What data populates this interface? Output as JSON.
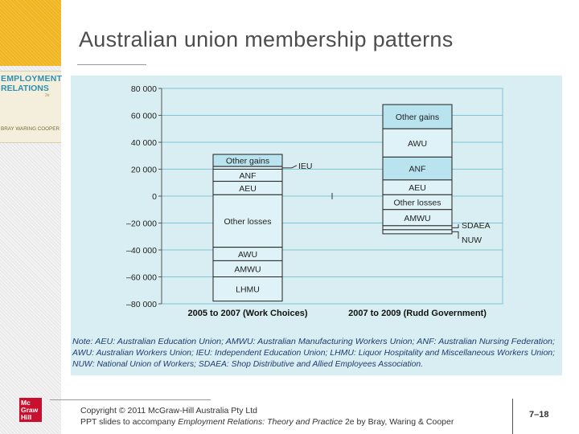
{
  "slide": {
    "title": "Australian union membership patterns",
    "page_number": "7–18"
  },
  "book": {
    "line1": "EMPLOYMENT",
    "line2": "RELATIONS",
    "edition": "2e",
    "authors": "BRAY WARING COOPER"
  },
  "publisher_logo": {
    "lines": [
      "Mc",
      "Graw",
      "Hill"
    ]
  },
  "footer": {
    "copyright": "Copyright © 2011 McGraw-Hill Australia Pty Ltd",
    "prefix": "PPT slides to accompany ",
    "book_title": "Employment Relations: Theory and Practice",
    "suffix": " 2e by Bray, Waring & Cooper"
  },
  "chart_data": {
    "type": "bar",
    "stacked": true,
    "ylim": [
      -80000,
      80000
    ],
    "yticks": [
      80000,
      60000,
      40000,
      20000,
      0,
      -20000,
      -40000,
      -60000,
      -80000
    ],
    "ytick_labels": [
      "80 000",
      "60 000",
      "40 000",
      "20 000",
      "0",
      "–20 000",
      "–40 000",
      "–60 000",
      "–80 000"
    ],
    "grid": true,
    "categories": [
      "2005 to 2007 (Work Choices)",
      "2007 to 2009 (Rudd Government)"
    ],
    "series": [
      {
        "category": "2005 to 2007 (Work Choices)",
        "segments": [
          {
            "label": "Other gains",
            "from": 22000,
            "to": 31000,
            "highlight": true
          },
          {
            "label": "",
            "from": 20000,
            "to": 22000
          },
          {
            "label": "ANF",
            "from": 11000,
            "to": 20000
          },
          {
            "label": "AEU",
            "from": 1000,
            "to": 11000
          },
          {
            "label": "Other losses",
            "from": -38000,
            "to": 1000
          },
          {
            "label": "AWU",
            "from": -48000,
            "to": -38000
          },
          {
            "label": "AMWU",
            "from": -60000,
            "to": -48000
          },
          {
            "label": "LHMU",
            "from": -78000,
            "to": -60000
          }
        ]
      },
      {
        "category": "2007 to 2009 (Rudd Government)",
        "segments": [
          {
            "label": "Other gains",
            "from": 50000,
            "to": 68000,
            "highlight": true
          },
          {
            "label": "AWU",
            "from": 29000,
            "to": 50000
          },
          {
            "label": "ANF",
            "from": 12000,
            "to": 29000,
            "highlight": true
          },
          {
            "label": "AEU",
            "from": 1000,
            "to": 12000
          },
          {
            "label": "Other losses",
            "from": -10000,
            "to": 1000
          },
          {
            "label": "AMWU",
            "from": -22000,
            "to": -10000
          },
          {
            "label": "",
            "from": -25000,
            "to": -22000
          },
          {
            "label": "",
            "from": -28000,
            "to": -25000
          }
        ]
      }
    ],
    "annotations": [
      {
        "label": "IEU",
        "category_index": 0,
        "value": 21000
      },
      {
        "label": "SDAEA",
        "category_index": 1,
        "value": -23500
      },
      {
        "label": "NUW",
        "category_index": 1,
        "value": -26500
      }
    ],
    "note_lines": [
      "Note: AEU: Australian Education Union; AMWU: Australian Manufacturing Workers Union; ANF: Australian Nursing Federation;",
      "AWU: Australian Workers Union; IEU: Independent Education Union; LHMU: Liquor Hospitality and Miscellaneous Workers Union;",
      "NUW: National Union of Workers; SDAEA: Shop Distributive and Allied Employees Association."
    ]
  }
}
